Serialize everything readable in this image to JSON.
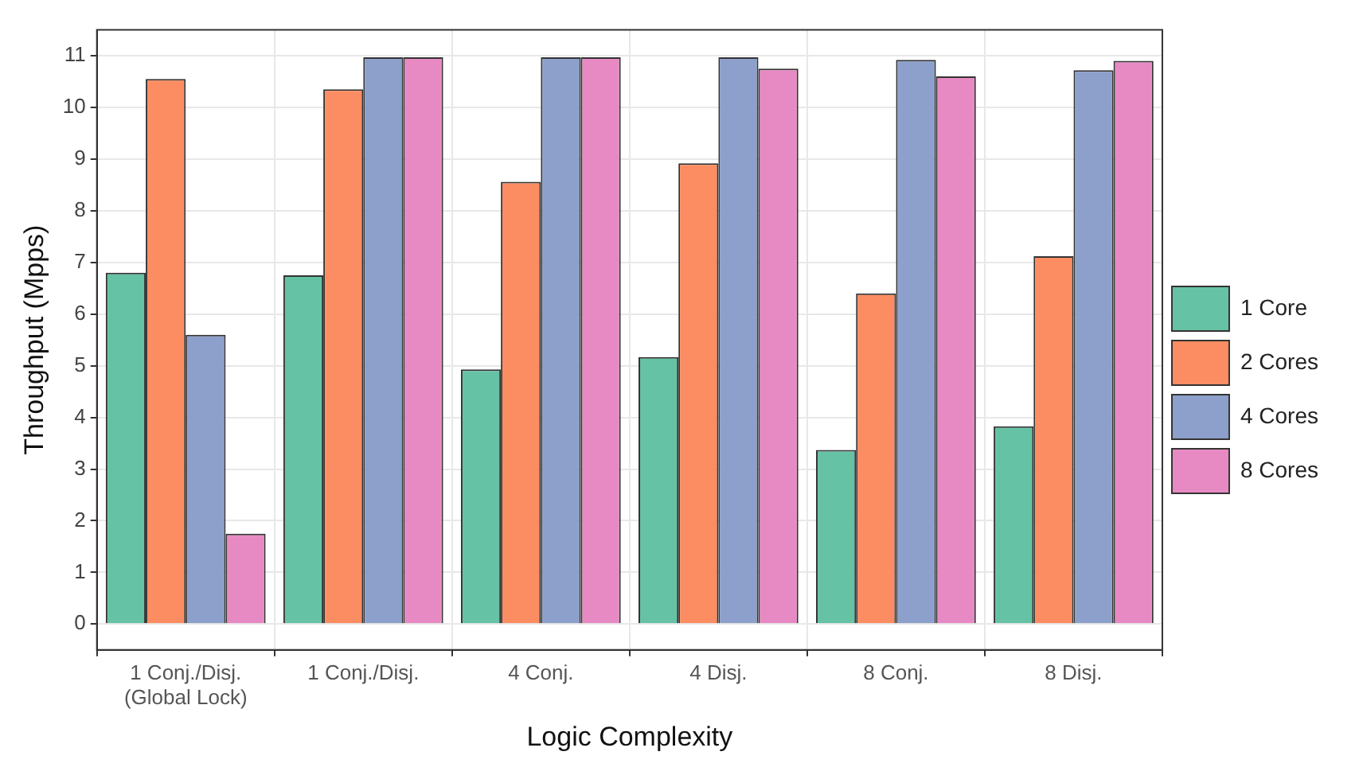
{
  "chart_data": {
    "type": "bar",
    "xlabel": "Logic Complexity",
    "ylabel": "Throughput (Mpps)",
    "categories": [
      "1 Conj./Disj.\n(Global Lock)",
      "1 Conj./Disj.",
      "4 Conj.",
      "4 Disj.",
      "8 Conj.",
      "8 Disj."
    ],
    "series": [
      {
        "name": "1 Core",
        "color": "#66c2a5",
        "values": [
          6.8,
          6.75,
          4.93,
          5.17,
          3.37,
          3.83
        ]
      },
      {
        "name": "2 Cores",
        "color": "#fc8d62",
        "values": [
          10.55,
          10.35,
          8.56,
          8.92,
          6.4,
          7.12
        ]
      },
      {
        "name": "4 Cores",
        "color": "#8da0cb",
        "values": [
          5.6,
          10.97,
          10.97,
          10.97,
          10.92,
          10.72
        ]
      },
      {
        "name": "8 Cores",
        "color": "#e78ac3",
        "values": [
          1.75,
          10.97,
          10.97,
          10.75,
          10.6,
          10.9
        ]
      }
    ],
    "ylim": [
      -0.5,
      11.5
    ],
    "yticks": [
      0,
      1,
      2,
      3,
      4,
      5,
      6,
      7,
      8,
      9,
      10,
      11
    ],
    "grid": true,
    "legend": "right"
  }
}
